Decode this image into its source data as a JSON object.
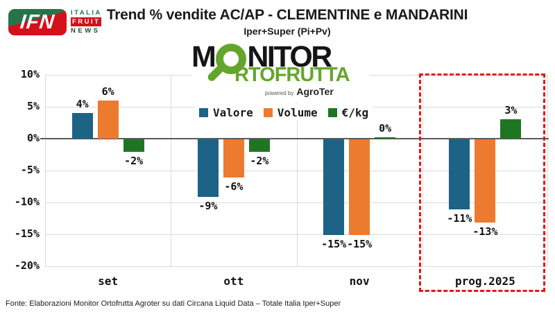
{
  "header": {
    "logo": {
      "ifn": "IFN",
      "italia": "ITALIA",
      "fruit": "FRUIT",
      "news": "NEWS"
    },
    "title": "Trend % vendite AC/AP - CLEMENTINE e MANDARINI",
    "subtitle": "Iper+Super (Pi+Pv)"
  },
  "monitor_logo": {
    "word_start": "M",
    "word_end": "NITOR",
    "line2": "RTOFRUTTA",
    "powered_by": "powered by",
    "brand": "AgroTer",
    "green": "#64A62B"
  },
  "legend": [
    {
      "label": "Valore",
      "color": "#1C6385"
    },
    {
      "label": "Volume",
      "color": "#EC7B2F"
    },
    {
      "label": "€/kg",
      "color": "#1E7623"
    }
  ],
  "chart_data": {
    "type": "bar",
    "categories": [
      "set",
      "ott",
      "nov",
      "prog.2025"
    ],
    "series": [
      {
        "name": "Valore",
        "color": "#1C6385",
        "values": [
          4,
          -9,
          -15,
          -11
        ],
        "labels": [
          "4%",
          "-9%",
          "-15%",
          "-11%"
        ]
      },
      {
        "name": "Volume",
        "color": "#EC7B2F",
        "values": [
          6,
          -6,
          -15,
          -13
        ],
        "labels": [
          "6%",
          "-6%",
          "-15%",
          "-13%"
        ]
      },
      {
        "name": "€/kg",
        "color": "#1E7623",
        "values": [
          -2,
          -2,
          0,
          3
        ],
        "labels": [
          "-2%",
          "-2%",
          "0%",
          "3%"
        ]
      }
    ],
    "title": "Trend % vendite AC/AP - CLEMENTINE e MANDARINI",
    "subtitle": "Iper+Super (Pi+Pv)",
    "ylim": [
      -20,
      10
    ],
    "yticks": [
      "10%",
      "5%",
      "0%",
      "-5%",
      "-10%",
      "-15%",
      "-20%"
    ],
    "grid": true,
    "legend_position": "top-center",
    "highlight": {
      "category": "prog.2025",
      "style": "red-dashed-box"
    }
  },
  "footer": {
    "source": "Fonte: Elaborazioni Monitor Ortofrutta Agroter su dati Circana Liquid Data – Totale Italia Iper+Super"
  }
}
